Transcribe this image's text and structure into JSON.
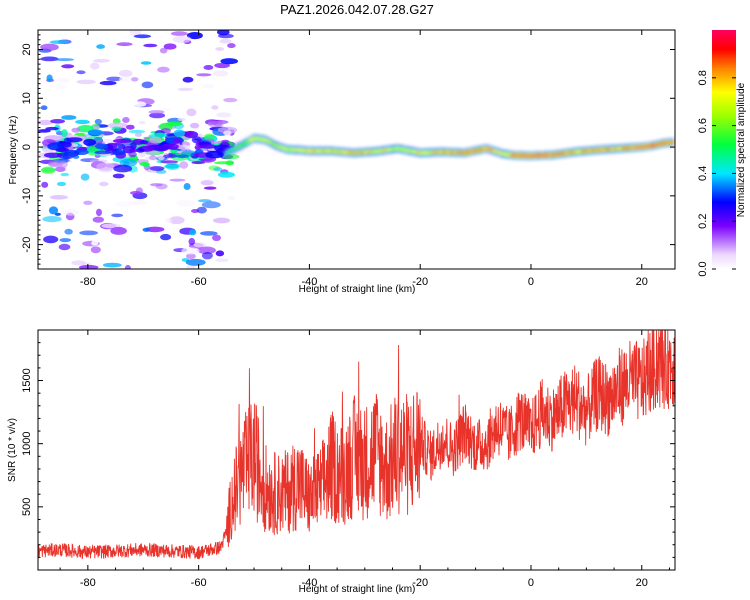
{
  "title": "PAZ1.2026.042.07.28.G27",
  "colors": {
    "snr_line": "#e8332b",
    "axis": "#000000"
  },
  "chart_data": [
    {
      "type": "heatmap",
      "xlabel": "Height of straight line (km)",
      "ylabel": "Frequency (Hz)",
      "xlim": [
        -89,
        26
      ],
      "ylim": [
        -25,
        24
      ],
      "xticks": [
        -80,
        -60,
        -40,
        -20,
        0,
        20
      ],
      "yticks": [
        -20,
        -10,
        0,
        10,
        20
      ],
      "xtick_labels": [
        "-80",
        "-60",
        "-40",
        "-20",
        "0",
        "20"
      ],
      "ytick_labels": [
        "-20",
        "-10",
        "0",
        "10",
        "20"
      ],
      "ridge": {
        "x": [
          -55,
          -52,
          -50,
          -48,
          -46,
          -44,
          -42,
          -40,
          -36,
          -32,
          -28,
          -24,
          -20,
          -16,
          -12,
          -8,
          -5,
          -3,
          0,
          4,
          8,
          12,
          16,
          20,
          22,
          24,
          26
        ],
        "freq": [
          -1.2,
          0.5,
          1.8,
          1.5,
          0.3,
          -0.5,
          -0.6,
          -0.8,
          -0.8,
          -1.2,
          -0.9,
          -0.3,
          -1.2,
          -1.0,
          -1.2,
          -0.3,
          -1.4,
          -1.7,
          -1.8,
          -1.6,
          -1.0,
          -0.6,
          -0.3,
          0.0,
          0.3,
          0.8,
          1.0
        ],
        "amplitude": [
          0.45,
          0.6,
          0.75,
          0.7,
          0.65,
          0.7,
          0.7,
          0.8,
          0.75,
          0.8,
          0.75,
          0.7,
          0.75,
          0.8,
          0.85,
          0.85,
          0.7,
          0.9,
          0.95,
          0.9,
          0.8,
          0.85,
          0.8,
          0.9,
          0.95,
          0.9,
          0.85
        ]
      },
      "noise_region": {
        "x_range": [
          -88,
          -54
        ],
        "freq_range": [
          -25,
          24
        ],
        "amplitude_range": [
          0.0,
          0.4
        ]
      }
    },
    {
      "type": "colorbar",
      "label": "Normalized spectral amplitude",
      "range": [
        0.0,
        1.0
      ],
      "ticks": [
        0.0,
        0.2,
        0.4,
        0.6,
        0.8
      ],
      "tick_labels": [
        "0.0",
        "0.2",
        "0.4",
        "0.6",
        "0.8"
      ]
    },
    {
      "type": "line",
      "xlabel": "Height of straight line (km)",
      "ylabel": "SNR (10 * v/v)",
      "xlim": [
        -89,
        26
      ],
      "ylim": [
        0,
        1900
      ],
      "xticks": [
        -80,
        -60,
        -40,
        -20,
        0,
        20
      ],
      "yticks": [
        500,
        1000,
        1500
      ],
      "xtick_labels": [
        "-80",
        "-60",
        "-40",
        "-20",
        "0",
        "20"
      ],
      "ytick_labels": [
        "500",
        "1000",
        "1500"
      ],
      "series": [
        {
          "name": "SNR",
          "x": [
            -89,
            -85,
            -80,
            -75,
            -70,
            -65,
            -60,
            -56,
            -55,
            -54,
            -52,
            -50,
            -48,
            -46,
            -44,
            -42,
            -40,
            -38,
            -36,
            -34,
            -32,
            -30,
            -28,
            -26,
            -24,
            -22,
            -20,
            -18,
            -16,
            -14,
            -12,
            -10,
            -8,
            -6,
            -4,
            -2,
            0,
            2,
            4,
            6,
            8,
            10,
            12,
            14,
            16,
            18,
            20,
            22,
            24,
            26
          ],
          "values": [
            150,
            160,
            140,
            150,
            160,
            150,
            140,
            180,
            300,
            550,
            780,
            900,
            650,
            600,
            620,
            700,
            560,
            640,
            820,
            750,
            900,
            850,
            950,
            800,
            950,
            900,
            1020,
            900,
            1050,
            950,
            1100,
            980,
            1000,
            1150,
            1050,
            1200,
            1100,
            1250,
            1200,
            1300,
            1350,
            1250,
            1400,
            1350,
            1450,
            1500,
            1480,
            1600,
            1620,
            1650
          ]
        }
      ]
    }
  ]
}
